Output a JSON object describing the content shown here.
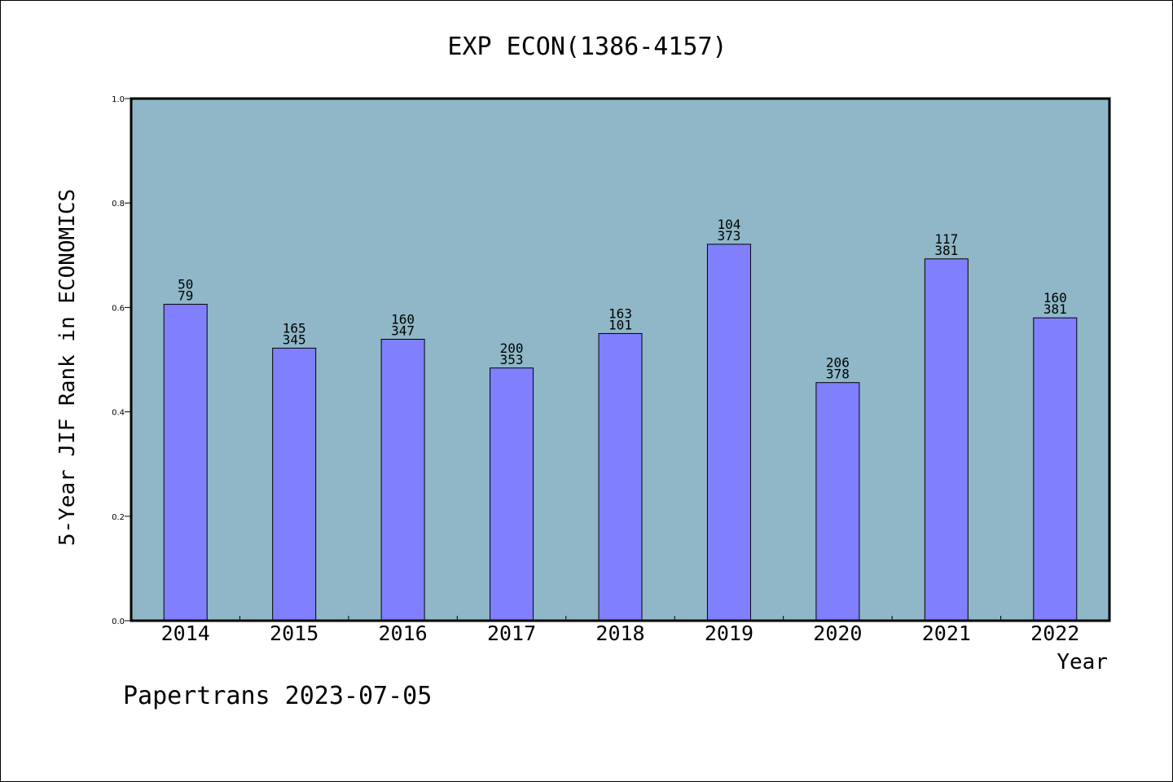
{
  "chart_data": {
    "type": "bar",
    "title": "EXP ECON(1386-4157)",
    "xlabel": "Year",
    "ylabel": "5-Year JIF Rank in ECONOMICS",
    "categories": [
      "2014",
      "2015",
      "2016",
      "2017",
      "2018",
      "2019",
      "2020",
      "2021",
      "2022"
    ],
    "values": [
      0.606,
      0.522,
      0.539,
      0.484,
      0.55,
      0.721,
      0.456,
      0.693,
      0.58
    ],
    "rank_labels": [
      "50",
      "165",
      "160",
      "200",
      "163",
      "104",
      "206",
      "117",
      "160"
    ],
    "total_labels": [
      "79",
      "345",
      "347",
      "353",
      "101",
      "373",
      "378",
      "381",
      "381"
    ],
    "yticks": [
      "0.0",
      "0.2",
      "0.4",
      "0.6",
      "0.8",
      "1.0"
    ],
    "ylim": [
      0,
      1
    ],
    "grid": false,
    "colors": {
      "plot_background": "#8fb7c7",
      "bar_fill": "#8080ff",
      "bar_stroke": "#000000"
    }
  },
  "footer": {
    "text": "Papertrans 2023-07-05"
  }
}
